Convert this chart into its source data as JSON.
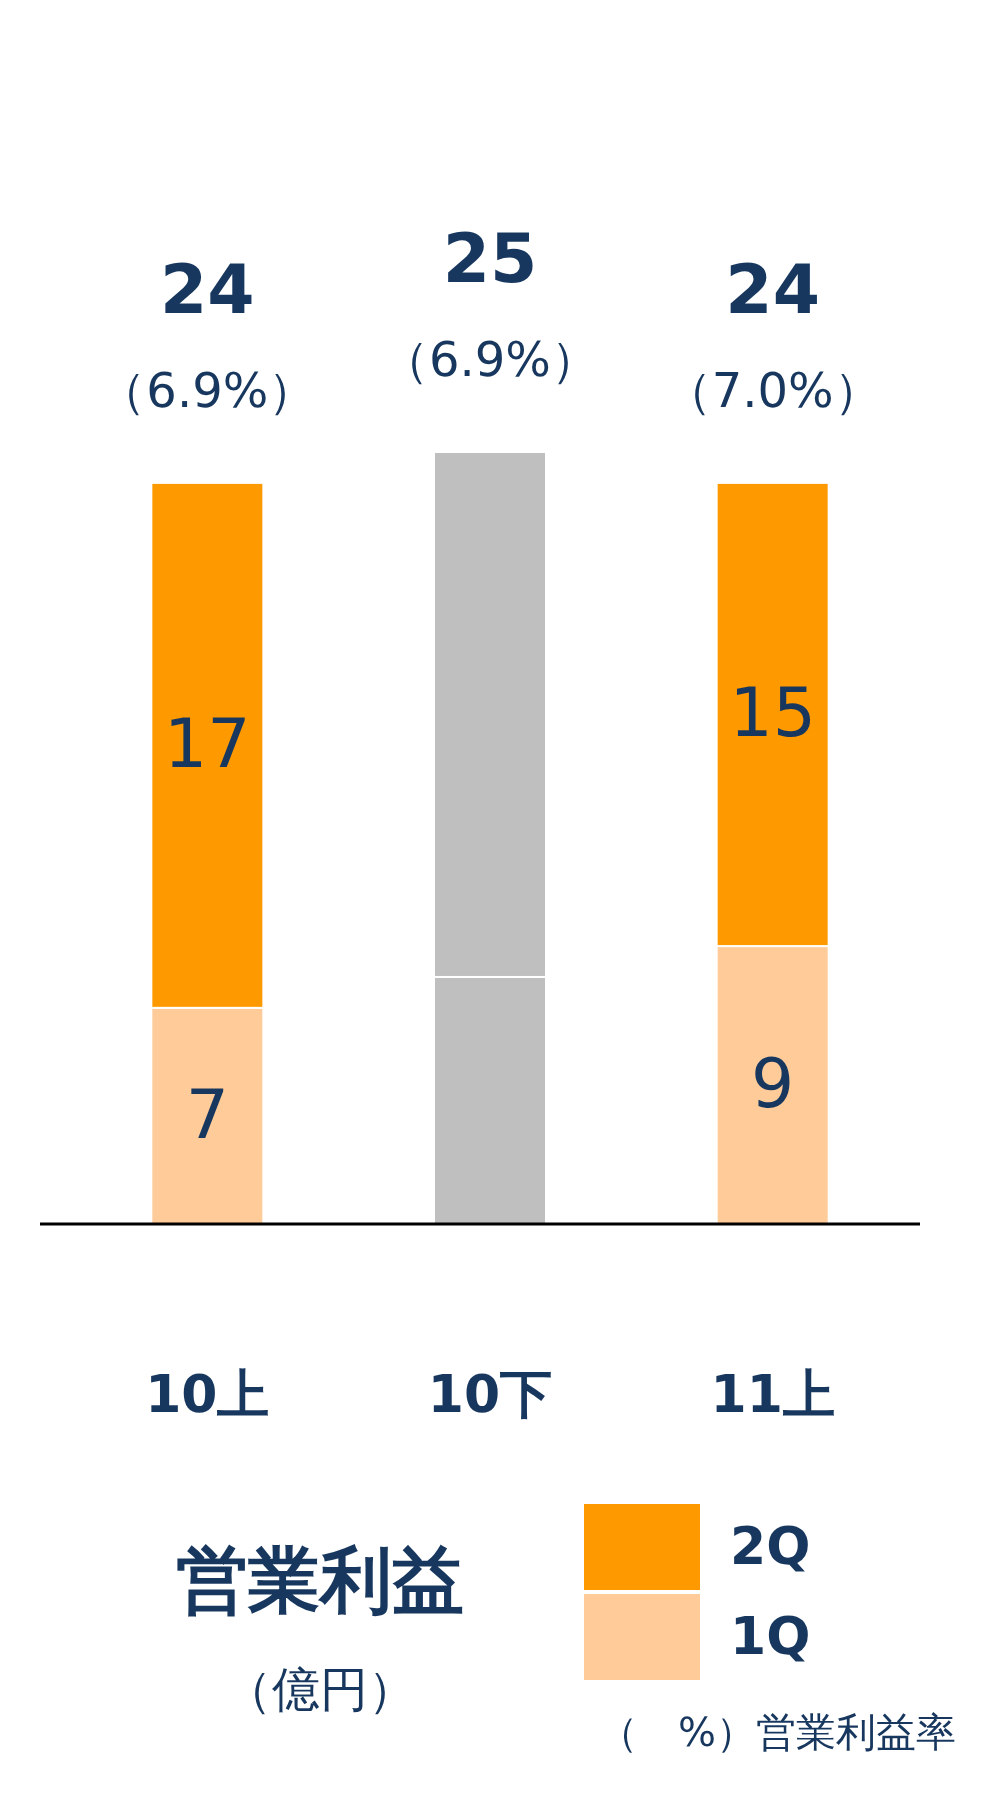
{
  "chart_data": {
    "type": "bar",
    "stacked": true,
    "title": "営業利益",
    "subtitle": "（億円）",
    "categories": [
      "10上",
      "10下",
      "11上"
    ],
    "series": [
      {
        "name": "1Q",
        "color": "#ffcc99",
        "colors": [
          "#ffcc99",
          "#bfbfbf",
          "#ffcc99"
        ],
        "values": [
          7,
          8,
          9
        ],
        "value_labels": [
          "7",
          null,
          "9"
        ]
      },
      {
        "name": "2Q",
        "color": "#ff9900",
        "colors": [
          "#ff9900",
          "#bfbfbf",
          "#ff9900"
        ],
        "values": [
          17,
          17,
          15
        ],
        "value_labels": [
          "17",
          null,
          "15"
        ]
      }
    ],
    "totals": [
      "24",
      "25",
      "24"
    ],
    "annotations": [
      {
        "text": "（6.9%）",
        "x": "10上",
        "y": 24
      },
      {
        "text": "（6.9%）",
        "x": "10下",
        "y": 25
      },
      {
        "text": "（7.0%）",
        "x": "11上",
        "y": 24
      },
      "（　%）営業利益率"
    ],
    "legend": "bottom right"
  }
}
